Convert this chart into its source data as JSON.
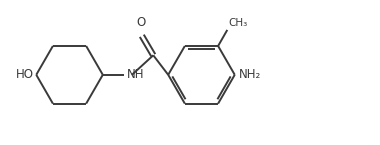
{
  "bg_color": "#ffffff",
  "line_color": "#3a3a3a",
  "text_color": "#3a3a3a",
  "line_width": 1.4,
  "font_size": 8.5,
  "figsize": [
    3.8,
    1.45
  ],
  "dpi": 100,
  "xlim": [
    -4.5,
    12.0
  ],
  "ylim": [
    -3.0,
    3.2
  ]
}
